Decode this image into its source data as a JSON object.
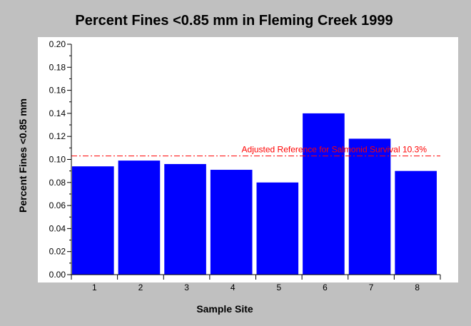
{
  "chart_data": {
    "type": "bar",
    "title": "Percent Fines <0.85 mm in Fleming Creek 1999",
    "xlabel": "Sample Site",
    "ylabel": "Percent Fines <0.85 mm",
    "categories": [
      "1",
      "2",
      "3",
      "4",
      "5",
      "6",
      "7",
      "8"
    ],
    "values": [
      0.094,
      0.099,
      0.096,
      0.091,
      0.08,
      0.14,
      0.118,
      0.09
    ],
    "ylim": [
      0,
      0.2
    ],
    "yticks": [
      "0.00",
      "0.02",
      "0.04",
      "0.06",
      "0.08",
      "0.10",
      "0.12",
      "0.14",
      "0.16",
      "0.18",
      "0.20"
    ],
    "reference_line": {
      "value": 0.103,
      "label": "Adjusted Reference for Salmonid Survival 10.3%",
      "color": "#ff0000",
      "style": "dash-dot"
    },
    "bar_color": "#0000ff",
    "plot_background": "#ffffff",
    "grid": false,
    "legend": "none"
  }
}
